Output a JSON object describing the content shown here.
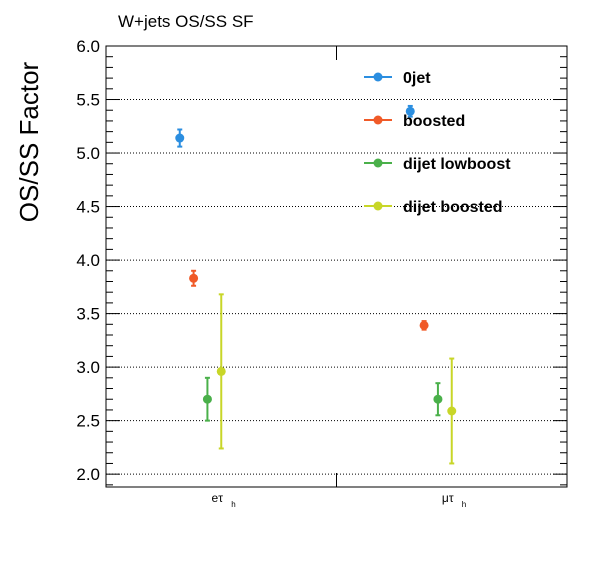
{
  "chart_data": {
    "type": "scatter",
    "title": "W+jets OS/SS SF",
    "ylabel": "OS/SS Factor",
    "xlabel": "",
    "ylim": [
      1.88,
      6.0
    ],
    "grid": "horizontal dotted at major y ticks",
    "y_ticks": [
      "2.0",
      "2.5",
      "3.0",
      "3.5",
      "4.0",
      "4.5",
      "5.0",
      "5.5",
      "6.0"
    ],
    "categories": [
      {
        "main": "eτ",
        "sub": "h"
      },
      {
        "main": "μτ",
        "sub": "h"
      }
    ],
    "legend_position": "top-right",
    "series": [
      {
        "name": "0jet",
        "color": "#2b8ee0",
        "points": [
          {
            "category": 0,
            "y": 5.14,
            "err": 0.08
          },
          {
            "category": 1,
            "y": 5.39,
            "err": 0.05
          }
        ]
      },
      {
        "name": "boosted",
        "color": "#f05a28",
        "points": [
          {
            "category": 0,
            "y": 3.83,
            "err": 0.07
          },
          {
            "category": 1,
            "y": 3.39,
            "err": 0.04
          }
        ]
      },
      {
        "name": "dijet lowboost",
        "color": "#4ab04a",
        "points": [
          {
            "category": 0,
            "y": 2.7,
            "err": 0.2
          },
          {
            "category": 1,
            "y": 2.7,
            "err": 0.15
          }
        ]
      },
      {
        "name": "dijet boosted",
        "color": "#c8d628",
        "points": [
          {
            "category": 0,
            "y": 2.96,
            "err": 0.72
          },
          {
            "category": 1,
            "y": 2.59,
            "err": 0.49
          }
        ]
      }
    ]
  }
}
